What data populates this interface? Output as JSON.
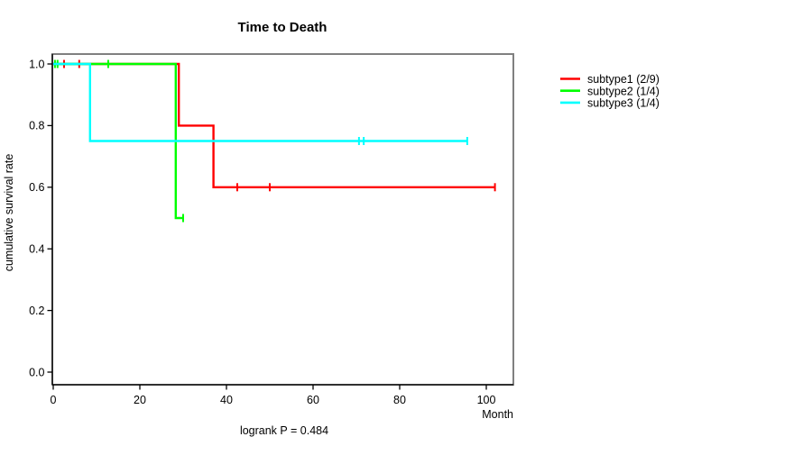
{
  "title": "Time to Death",
  "footnote": "logrank P = 0.484",
  "chart_data": {
    "type": "line",
    "subtype": "kaplan-meier-step-curves",
    "title": "Time to Death",
    "xlabel": "Month",
    "ylabel": "cumulative survival rate",
    "annotation": "logrank P = 0.484",
    "xlim": [
      0,
      106.25
    ],
    "ylim": [
      0,
      1.0
    ],
    "x_ticks": [
      0,
      20,
      40,
      60,
      80,
      100
    ],
    "y_ticks": [
      0.0,
      0.2,
      0.4,
      0.6,
      0.8,
      1.0
    ],
    "grid": false,
    "legend_position": "right-outside",
    "box_color": "#808080",
    "axis_color": "#000000",
    "series": [
      {
        "name": "subtype1 (2/9)",
        "color": "#ff0000",
        "steps": [
          [
            0,
            1.0
          ],
          [
            29,
            1.0
          ],
          [
            29,
            0.8
          ],
          [
            37,
            0.8
          ],
          [
            37,
            0.6
          ],
          [
            102,
            0.6
          ]
        ],
        "censors": [
          [
            2.5,
            1.0
          ],
          [
            6,
            1.0
          ],
          [
            42.5,
            0.6
          ],
          [
            50,
            0.6
          ],
          [
            102,
            0.6
          ]
        ]
      },
      {
        "name": "subtype2 (1/4)",
        "color": "#00ff00",
        "steps": [
          [
            0,
            1.0
          ],
          [
            28.3,
            1.0
          ],
          [
            28.3,
            0.5
          ],
          [
            30,
            0.5
          ]
        ],
        "censors": [
          [
            0.4,
            1.0
          ],
          [
            1.0,
            1.0
          ],
          [
            12.7,
            1.0
          ],
          [
            30,
            0.5
          ]
        ]
      },
      {
        "name": "subtype3 (1/4)",
        "color": "#00ffff",
        "steps": [
          [
            0,
            1.0
          ],
          [
            8.5,
            1.0
          ],
          [
            8.5,
            0.75
          ],
          [
            95.6,
            0.75
          ]
        ],
        "censors": [
          [
            70.6,
            0.75
          ],
          [
            71.7,
            0.75
          ],
          [
            95.6,
            0.75
          ]
        ]
      }
    ]
  }
}
